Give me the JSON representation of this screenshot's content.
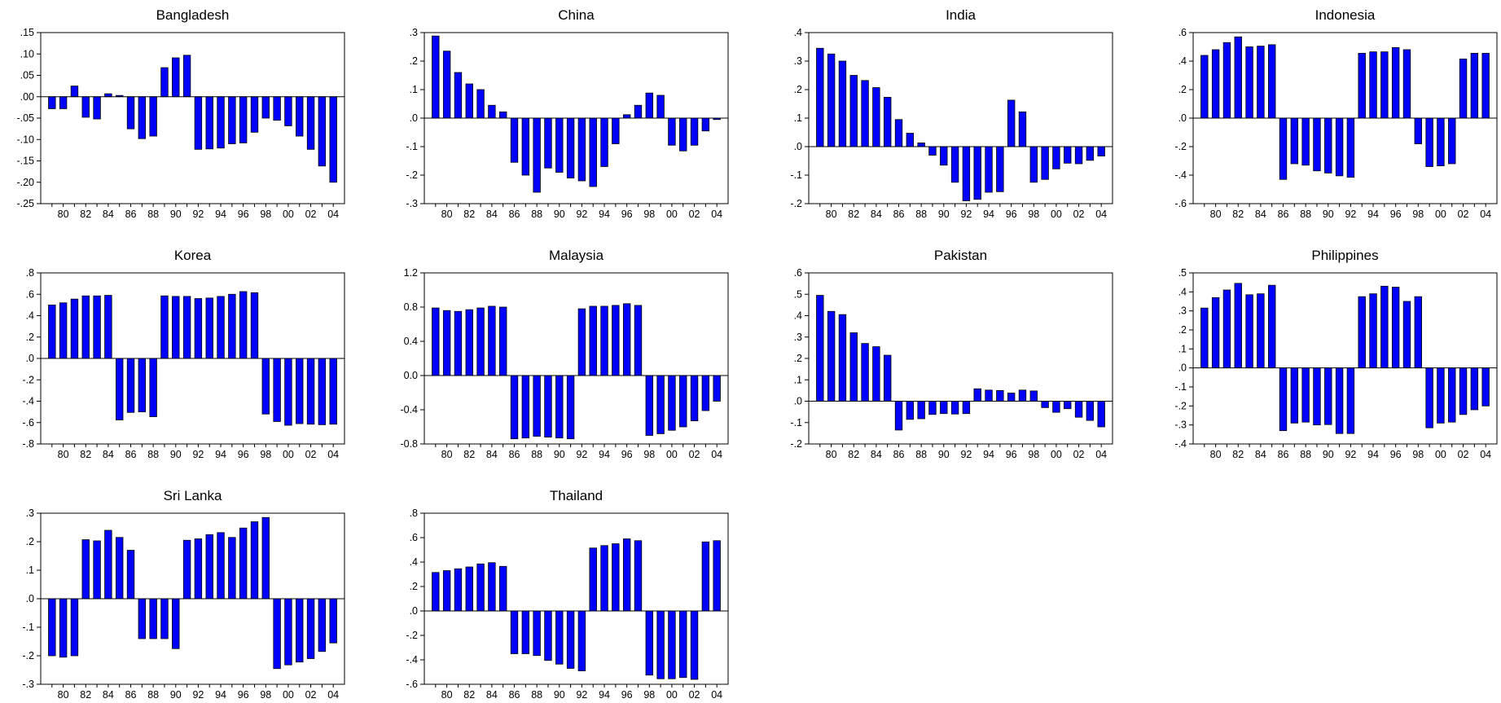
{
  "chart_data": [
    {
      "type": "bar",
      "title": "Bangladesh",
      "x": [
        "79",
        "80",
        "81",
        "82",
        "83",
        "84",
        "85",
        "86",
        "87",
        "88",
        "89",
        "90",
        "91",
        "92",
        "93",
        "94",
        "95",
        "96",
        "97",
        "98",
        "99",
        "00",
        "01",
        "02",
        "03",
        "04"
      ],
      "xticks": [
        "80",
        "82",
        "84",
        "86",
        "88",
        "90",
        "92",
        "94",
        "96",
        "98",
        "00",
        "02",
        "04"
      ],
      "values": [
        -0.028,
        -0.028,
        0.025,
        -0.048,
        -0.052,
        0.007,
        0.003,
        -0.075,
        -0.098,
        -0.092,
        0.068,
        0.091,
        0.097,
        -0.123,
        -0.122,
        -0.12,
        -0.11,
        -0.108,
        -0.083,
        -0.05,
        -0.055,
        -0.068,
        -0.092,
        -0.123,
        -0.162,
        -0.2
      ],
      "ylim": [
        -0.25,
        0.15
      ],
      "yticks": [
        -0.25,
        -0.2,
        -0.15,
        -0.1,
        -0.05,
        0,
        0.05,
        0.1,
        0.15
      ],
      "ytick_labels": [
        "-.25",
        "-.20",
        "-.15",
        "-.10",
        "-.05",
        ".00",
        ".05",
        ".10",
        ".15"
      ],
      "bar_color": "#0000ff"
    },
    {
      "type": "bar",
      "title": "China",
      "x": [
        "79",
        "80",
        "81",
        "82",
        "83",
        "84",
        "85",
        "86",
        "87",
        "88",
        "89",
        "90",
        "91",
        "92",
        "93",
        "94",
        "95",
        "96",
        "97",
        "98",
        "99",
        "00",
        "01",
        "02",
        "03",
        "04"
      ],
      "xticks": [
        "80",
        "82",
        "84",
        "86",
        "88",
        "90",
        "92",
        "94",
        "96",
        "98",
        "00",
        "02",
        "04"
      ],
      "values": [
        0.288,
        0.235,
        0.16,
        0.12,
        0.1,
        0.045,
        0.022,
        -0.155,
        -0.2,
        -0.26,
        -0.175,
        -0.19,
        -0.21,
        -0.22,
        -0.24,
        -0.17,
        -0.09,
        0.012,
        0.045,
        0.088,
        0.08,
        -0.095,
        -0.115,
        -0.095,
        -0.045,
        -0.005
      ],
      "ylim": [
        -0.3,
        0.3
      ],
      "yticks": [
        -0.3,
        -0.2,
        -0.1,
        0,
        0.1,
        0.2,
        0.3
      ],
      "ytick_labels": [
        "-.3",
        "-.2",
        "-.1",
        ".0",
        ".1",
        ".2",
        ".3"
      ],
      "bar_color": "#0000ff"
    },
    {
      "type": "bar",
      "title": "India",
      "x": [
        "79",
        "80",
        "81",
        "82",
        "83",
        "84",
        "85",
        "86",
        "87",
        "88",
        "89",
        "90",
        "91",
        "92",
        "93",
        "94",
        "95",
        "96",
        "97",
        "98",
        "99",
        "00",
        "01",
        "02",
        "03",
        "04"
      ],
      "xticks": [
        "80",
        "82",
        "84",
        "86",
        "88",
        "90",
        "92",
        "94",
        "96",
        "98",
        "00",
        "02",
        "04"
      ],
      "values": [
        0.345,
        0.325,
        0.3,
        0.25,
        0.232,
        0.207,
        0.173,
        0.095,
        0.047,
        0.013,
        -0.03,
        -0.065,
        -0.125,
        -0.19,
        -0.185,
        -0.16,
        -0.158,
        0.163,
        0.122,
        -0.125,
        -0.115,
        -0.078,
        -0.058,
        -0.06,
        -0.048,
        -0.033
      ],
      "ylim": [
        -0.2,
        0.4
      ],
      "yticks": [
        -0.2,
        -0.1,
        0,
        0.1,
        0.2,
        0.3,
        0.4
      ],
      "ytick_labels": [
        "-.2",
        "-.1",
        ".0",
        ".1",
        ".2",
        ".3",
        ".4"
      ],
      "bar_color": "#0000ff"
    },
    {
      "type": "bar",
      "title": "Indonesia",
      "x": [
        "79",
        "80",
        "81",
        "82",
        "83",
        "84",
        "85",
        "86",
        "87",
        "88",
        "89",
        "90",
        "91",
        "92",
        "93",
        "94",
        "95",
        "96",
        "97",
        "98",
        "99",
        "00",
        "01",
        "02",
        "03",
        "04"
      ],
      "xticks": [
        "80",
        "82",
        "84",
        "86",
        "88",
        "90",
        "92",
        "94",
        "96",
        "98",
        "00",
        "02",
        "04"
      ],
      "values": [
        0.44,
        0.48,
        0.53,
        0.57,
        0.5,
        0.505,
        0.515,
        -0.43,
        -0.32,
        -0.33,
        -0.37,
        -0.385,
        -0.405,
        -0.415,
        0.455,
        0.465,
        0.465,
        0.495,
        0.48,
        -0.18,
        -0.34,
        -0.335,
        -0.32,
        0.415,
        0.455,
        0.455
      ],
      "ylim": [
        -0.6,
        0.6
      ],
      "yticks": [
        -0.6,
        -0.4,
        -0.2,
        0,
        0.2,
        0.4,
        0.6
      ],
      "ytick_labels": [
        "-.6",
        "-.4",
        "-.2",
        ".0",
        ".2",
        ".4",
        ".6"
      ],
      "bar_color": "#0000ff"
    },
    {
      "type": "bar",
      "title": "Korea",
      "x": [
        "79",
        "80",
        "81",
        "82",
        "83",
        "84",
        "85",
        "86",
        "87",
        "88",
        "89",
        "90",
        "91",
        "92",
        "93",
        "94",
        "95",
        "96",
        "97",
        "98",
        "99",
        "00",
        "01",
        "02",
        "03",
        "04"
      ],
      "xticks": [
        "80",
        "82",
        "84",
        "86",
        "88",
        "90",
        "92",
        "94",
        "96",
        "98",
        "00",
        "02",
        "04"
      ],
      "values": [
        0.5,
        0.52,
        0.555,
        0.585,
        0.585,
        0.59,
        -0.575,
        -0.505,
        -0.5,
        -0.545,
        0.585,
        0.58,
        0.58,
        0.56,
        0.565,
        0.58,
        0.6,
        0.625,
        0.615,
        -0.52,
        -0.59,
        -0.625,
        -0.61,
        -0.615,
        -0.62,
        -0.615
      ],
      "ylim": [
        -0.8,
        0.8
      ],
      "yticks": [
        -0.8,
        -0.6,
        -0.4,
        -0.2,
        0,
        0.2,
        0.4,
        0.6,
        0.8
      ],
      "ytick_labels": [
        "-.8",
        "-.6",
        "-.4",
        "-.2",
        ".0",
        ".2",
        ".4",
        ".6",
        ".8"
      ],
      "bar_color": "#0000ff"
    },
    {
      "type": "bar",
      "title": "Malaysia",
      "x": [
        "79",
        "80",
        "81",
        "82",
        "83",
        "84",
        "85",
        "86",
        "87",
        "88",
        "89",
        "90",
        "91",
        "92",
        "93",
        "94",
        "95",
        "96",
        "97",
        "98",
        "99",
        "00",
        "01",
        "02",
        "03",
        "04"
      ],
      "xticks": [
        "80",
        "82",
        "84",
        "86",
        "88",
        "90",
        "92",
        "94",
        "96",
        "98",
        "00",
        "02",
        "04"
      ],
      "values": [
        0.79,
        0.76,
        0.75,
        0.77,
        0.79,
        0.81,
        0.8,
        -0.74,
        -0.73,
        -0.71,
        -0.72,
        -0.73,
        -0.74,
        0.78,
        0.81,
        0.81,
        0.82,
        0.84,
        0.82,
        -0.7,
        -0.68,
        -0.64,
        -0.6,
        -0.53,
        -0.41,
        -0.3
      ],
      "ylim": [
        -0.8,
        1.2
      ],
      "yticks": [
        -0.8,
        -0.4,
        0,
        0.4,
        0.8,
        1.2
      ],
      "ytick_labels": [
        "-0.8",
        "-0.4",
        "0.0",
        "0.4",
        "0.8",
        "1.2"
      ],
      "bar_color": "#0000ff"
    },
    {
      "type": "bar",
      "title": "Pakistan",
      "x": [
        "79",
        "80",
        "81",
        "82",
        "83",
        "84",
        "85",
        "86",
        "87",
        "88",
        "89",
        "90",
        "91",
        "92",
        "93",
        "94",
        "95",
        "96",
        "97",
        "98",
        "99",
        "00",
        "01",
        "02",
        "03",
        "04"
      ],
      "xticks": [
        "80",
        "82",
        "84",
        "86",
        "88",
        "90",
        "92",
        "94",
        "96",
        "98",
        "00",
        "02",
        "04"
      ],
      "values": [
        0.495,
        0.42,
        0.405,
        0.32,
        0.27,
        0.255,
        0.215,
        -0.135,
        -0.085,
        -0.082,
        -0.062,
        -0.058,
        -0.06,
        -0.058,
        0.058,
        0.052,
        0.05,
        0.038,
        0.052,
        0.048,
        -0.03,
        -0.052,
        -0.035,
        -0.075,
        -0.09,
        -0.12
      ],
      "ylim": [
        -0.2,
        0.6
      ],
      "yticks": [
        -0.2,
        -0.1,
        0,
        0.1,
        0.2,
        0.3,
        0.4,
        0.5,
        0.6
      ],
      "ytick_labels": [
        "-.2",
        "-.1",
        ".0",
        ".1",
        ".2",
        ".3",
        ".4",
        ".5",
        ".6"
      ],
      "bar_color": "#0000ff"
    },
    {
      "type": "bar",
      "title": "Philippines",
      "x": [
        "79",
        "80",
        "81",
        "82",
        "83",
        "84",
        "85",
        "86",
        "87",
        "88",
        "89",
        "90",
        "91",
        "92",
        "93",
        "94",
        "95",
        "96",
        "97",
        "98",
        "99",
        "00",
        "01",
        "02",
        "03",
        "04"
      ],
      "xticks": [
        "80",
        "82",
        "84",
        "86",
        "88",
        "90",
        "92",
        "94",
        "96",
        "98",
        "00",
        "02",
        "04"
      ],
      "values": [
        0.315,
        0.37,
        0.41,
        0.445,
        0.385,
        0.39,
        0.435,
        -0.33,
        -0.29,
        -0.285,
        -0.3,
        -0.298,
        -0.345,
        -0.345,
        0.375,
        0.39,
        0.43,
        0.425,
        0.35,
        0.375,
        -0.315,
        -0.29,
        -0.285,
        -0.245,
        -0.22,
        -0.2
      ],
      "ylim": [
        -0.4,
        0.5
      ],
      "yticks": [
        -0.4,
        -0.3,
        -0.2,
        -0.1,
        0,
        0.1,
        0.2,
        0.3,
        0.4,
        0.5
      ],
      "ytick_labels": [
        "-.4",
        "-.3",
        "-.2",
        "-.1",
        ".0",
        ".1",
        ".2",
        ".3",
        ".4",
        ".5"
      ],
      "bar_color": "#0000ff"
    },
    {
      "type": "bar",
      "title": "Sri Lanka",
      "x": [
        "79",
        "80",
        "81",
        "82",
        "83",
        "84",
        "85",
        "86",
        "87",
        "88",
        "89",
        "90",
        "91",
        "92",
        "93",
        "94",
        "95",
        "96",
        "97",
        "98",
        "99",
        "00",
        "01",
        "02",
        "03",
        "04"
      ],
      "xticks": [
        "80",
        "82",
        "84",
        "86",
        "88",
        "90",
        "92",
        "94",
        "96",
        "98",
        "00",
        "02",
        "04"
      ],
      "values": [
        -0.2,
        -0.205,
        -0.2,
        0.207,
        0.203,
        0.24,
        0.215,
        0.17,
        -0.14,
        -0.14,
        -0.14,
        -0.175,
        0.205,
        0.21,
        0.225,
        0.232,
        0.215,
        0.248,
        0.27,
        0.285,
        -0.245,
        -0.232,
        -0.222,
        -0.21,
        -0.185,
        -0.155
      ],
      "ylim": [
        -0.3,
        0.3
      ],
      "yticks": [
        -0.3,
        -0.2,
        -0.1,
        0,
        0.1,
        0.2,
        0.3
      ],
      "ytick_labels": [
        "-.3",
        "-.2",
        "-.1",
        ".0",
        ".1",
        ".2",
        ".3"
      ],
      "bar_color": "#0000ff"
    },
    {
      "type": "bar",
      "title": "Thailand",
      "x": [
        "79",
        "80",
        "81",
        "82",
        "83",
        "84",
        "85",
        "86",
        "87",
        "88",
        "89",
        "90",
        "91",
        "92",
        "93",
        "94",
        "95",
        "96",
        "97",
        "98",
        "99",
        "00",
        "01",
        "02",
        "03",
        "04"
      ],
      "xticks": [
        "80",
        "82",
        "84",
        "86",
        "88",
        "90",
        "92",
        "94",
        "96",
        "98",
        "00",
        "02",
        "04"
      ],
      "values": [
        0.315,
        0.33,
        0.345,
        0.36,
        0.385,
        0.395,
        0.365,
        -0.35,
        -0.35,
        -0.365,
        -0.405,
        -0.435,
        -0.47,
        -0.49,
        0.515,
        0.535,
        0.55,
        0.59,
        0.575,
        -0.525,
        -0.555,
        -0.555,
        -0.545,
        -0.56,
        0.565,
        0.575
      ],
      "ylim": [
        -0.6,
        0.8
      ],
      "yticks": [
        -0.6,
        -0.4,
        -0.2,
        0,
        0.2,
        0.4,
        0.6,
        0.8
      ],
      "ytick_labels": [
        "-.6",
        "-.4",
        "-.2",
        ".0",
        ".2",
        ".4",
        ".6",
        ".8"
      ],
      "bar_color": "#0000ff"
    }
  ]
}
